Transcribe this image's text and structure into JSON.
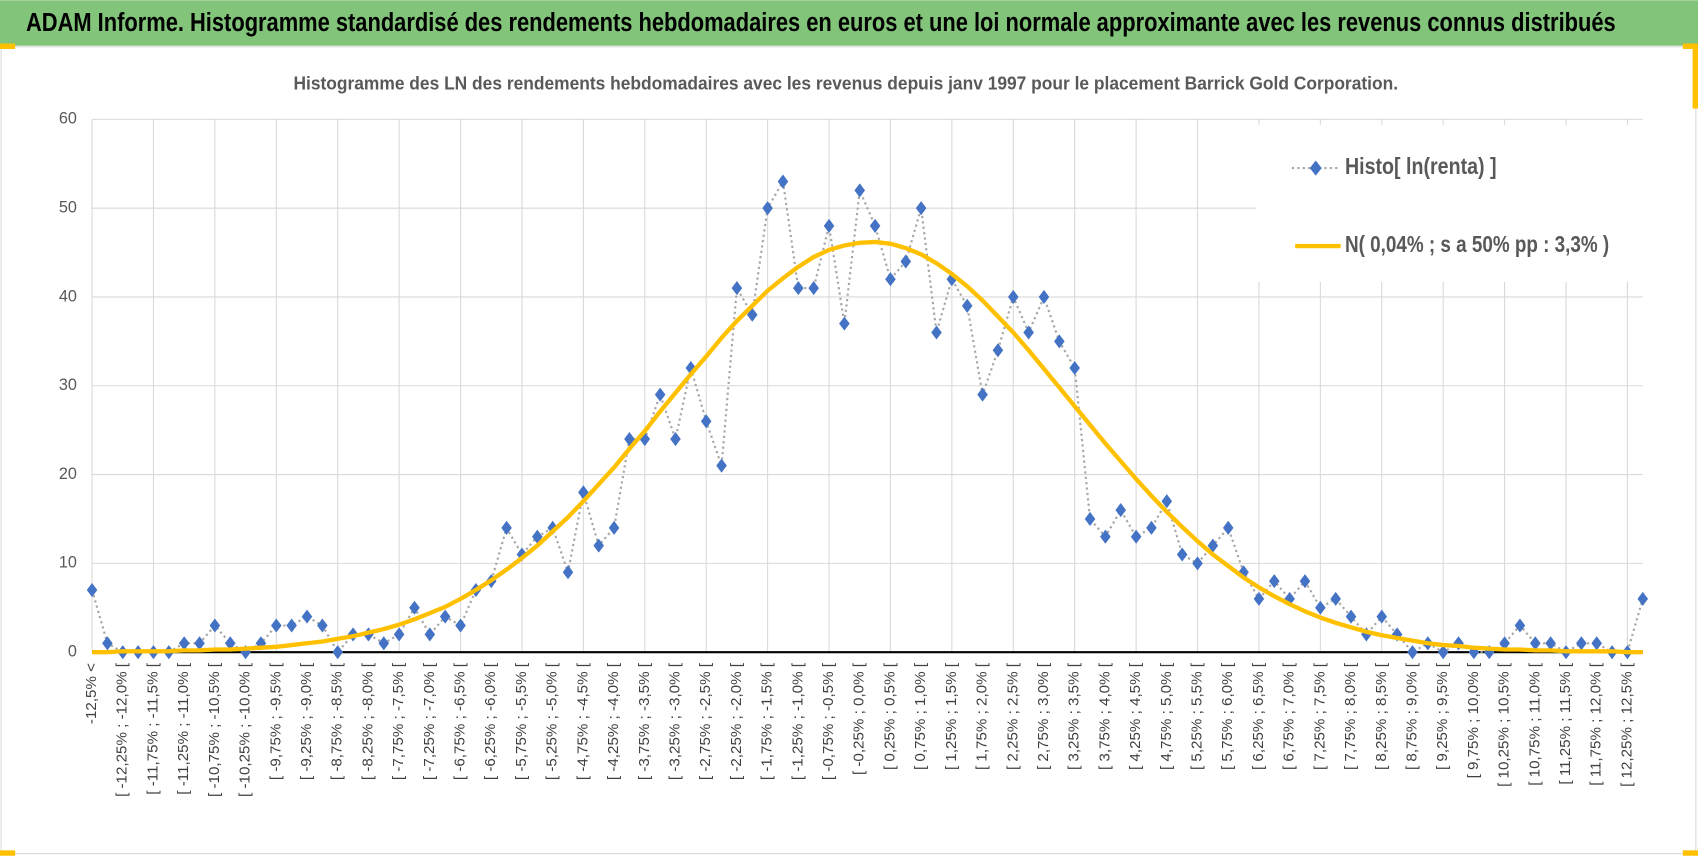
{
  "header": {
    "title": "ADAM Informe. Histogramme standardisé des rendements hebdomadaires en euros et une loi normale approximante avec les revenus connus distribués"
  },
  "chart_data": {
    "type": "line",
    "title": "Histogramme des LN des rendements hebdomadaires avec les revenus depuis janv 1997 pour le placement Barrick Gold Corporation.",
    "categories": [
      "-12,5% <",
      null,
      "[ -12,25% ; -12,0% [",
      null,
      "[ -11,75% ; -11,5% [",
      null,
      "[ -11,25% ; -11,0% [",
      null,
      "[ -10,75% ; -10,5% [",
      null,
      "[ -10,25% ; -10,0% [",
      null,
      "[ -9,75% ; -9,5% [",
      null,
      "[ -9,25% ; -9,0% [",
      null,
      "[ -8,75% ; -8,5% [",
      null,
      "[ -8,25% ; -8,0% [",
      null,
      "[ -7,75% ; -7,5% [",
      null,
      "[ -7,25% ; -7,0% [",
      null,
      "[ -6,75% ; -6,5% [",
      null,
      "[ -6,25% ; -6,0% [",
      null,
      "[ -5,75% ; -5,5% [",
      null,
      "[ -5,25% ; -5,0% [",
      null,
      "[ -4,75% ; -4,5% [",
      null,
      "[ -4,25% ; -4,0% [",
      null,
      "[ -3,75% ; -3,5% [",
      null,
      "[ -3,25% ; -3,0% [",
      null,
      "[ -2,75% ; -2,5% [",
      null,
      "[ -2,25% ; -2,0% [",
      null,
      "[ -1,75% ; -1,5% [",
      null,
      "[ -1,25% ; -1,0% [",
      null,
      "[ -0,75% ; -0,5% [",
      null,
      "[ -0,25% ; 0,0% [",
      null,
      "[ 0,25% ; 0,5% [",
      null,
      "[ 0,75% ; 1,0% [",
      null,
      "[ 1,25% ; 1,5% [",
      null,
      "[ 1,75% ; 2,0% [",
      null,
      "[ 2,25% ; 2,5% [",
      null,
      "[ 2,75% ; 3,0% [",
      null,
      "[ 3,25% ; 3,5% [",
      null,
      "[ 3,75% ; 4,0% [",
      null,
      "[ 4,25% ; 4,5% [",
      null,
      "[ 4,75% ; 5,0% [",
      null,
      "[ 5,25% ; 5,5% [",
      null,
      "[ 5,75% ; 6,0% [",
      null,
      "[ 6,25% ; 6,5% [",
      null,
      "[ 6,75% ; 7,0% [",
      null,
      "[ 7,25% ; 7,5% [",
      null,
      "[ 7,75% ; 8,0% [",
      null,
      "[ 8,25% ; 8,5% [",
      null,
      "[ 8,75% ; 9,0% [",
      null,
      "[ 9,25% ; 9,5% [",
      null,
      "[ 9,75% ; 10,0% [",
      null,
      "[ 10,25% ; 10,5% [",
      null,
      "[ 10,75% ; 11,0% [",
      null,
      "[ 11,25% ; 11,5% [",
      null,
      "[ 11,75% ; 12,0% [",
      null,
      "[ 12,25% ; 12,5% [",
      null
    ],
    "series": [
      {
        "name": "Histo[ ln(renta) ]",
        "color": "#4472c4",
        "line_color": "#a6a6a6",
        "values": [
          7,
          1,
          0,
          0,
          0,
          0,
          1,
          1,
          3,
          1,
          0,
          1,
          3,
          3,
          4,
          3,
          0,
          2,
          2,
          1,
          2,
          5,
          2,
          4,
          3,
          7,
          8,
          14,
          11,
          13,
          14,
          9,
          18,
          12,
          14,
          24,
          24,
          29,
          24,
          32,
          26,
          21,
          41,
          38,
          50,
          53,
          41,
          41,
          48,
          37,
          52,
          48,
          42,
          44,
          50,
          36,
          42,
          39,
          29,
          34,
          40,
          36,
          40,
          35,
          32,
          15,
          13,
          16,
          13,
          14,
          17,
          11,
          10,
          12,
          14,
          9,
          6,
          8,
          6,
          8,
          5,
          6,
          4,
          2,
          4,
          2,
          0,
          1,
          0,
          1,
          0,
          0,
          1,
          3,
          1,
          1,
          0,
          1,
          1,
          0,
          0,
          6
        ]
      },
      {
        "name": "N( 0,04% ; s a 50% pp : 3,3% )",
        "color": "#ffc000",
        "values": [
          0,
          0.0,
          0.1,
          0.1,
          0.1,
          0.1,
          0.2,
          0.2,
          0.3,
          0.3,
          0.4,
          0.5,
          0.6,
          0.8,
          1.0,
          1.2,
          1.5,
          1.8,
          2.2,
          2.6,
          3.1,
          3.7,
          4.4,
          5.1,
          6.0,
          7.0,
          8.1,
          9.3,
          10.6,
          12.0,
          13.6,
          15.2,
          17.0,
          18.9,
          20.8,
          22.9,
          24.9,
          27.1,
          29.2,
          31.3,
          33.3,
          35.4,
          37.3,
          39.0,
          40.7,
          42.1,
          43.4,
          44.5,
          45.3,
          45.8,
          46.1,
          46.2,
          46.0,
          45.5,
          44.8,
          43.8,
          42.6,
          41.2,
          39.6,
          37.8,
          36.0,
          34.0,
          31.9,
          29.8,
          27.7,
          25.6,
          23.5,
          21.5,
          19.5,
          17.6,
          15.8,
          14.1,
          12.5,
          11.0,
          9.7,
          8.4,
          7.3,
          6.3,
          5.4,
          4.6,
          3.9,
          3.3,
          2.8,
          2.3,
          1.9,
          1.6,
          1.3,
          1.0,
          0.8,
          0.7,
          0.5,
          0.4,
          0.3,
          0.3,
          0.2,
          0.2,
          0.1,
          0.1,
          0.1,
          0.1,
          0.0,
          0
        ]
      }
    ],
    "ylim": [
      0,
      60
    ],
    "yticks": [
      0,
      10,
      20,
      30,
      40,
      50,
      60
    ],
    "grid": true,
    "legend": "top-right"
  }
}
